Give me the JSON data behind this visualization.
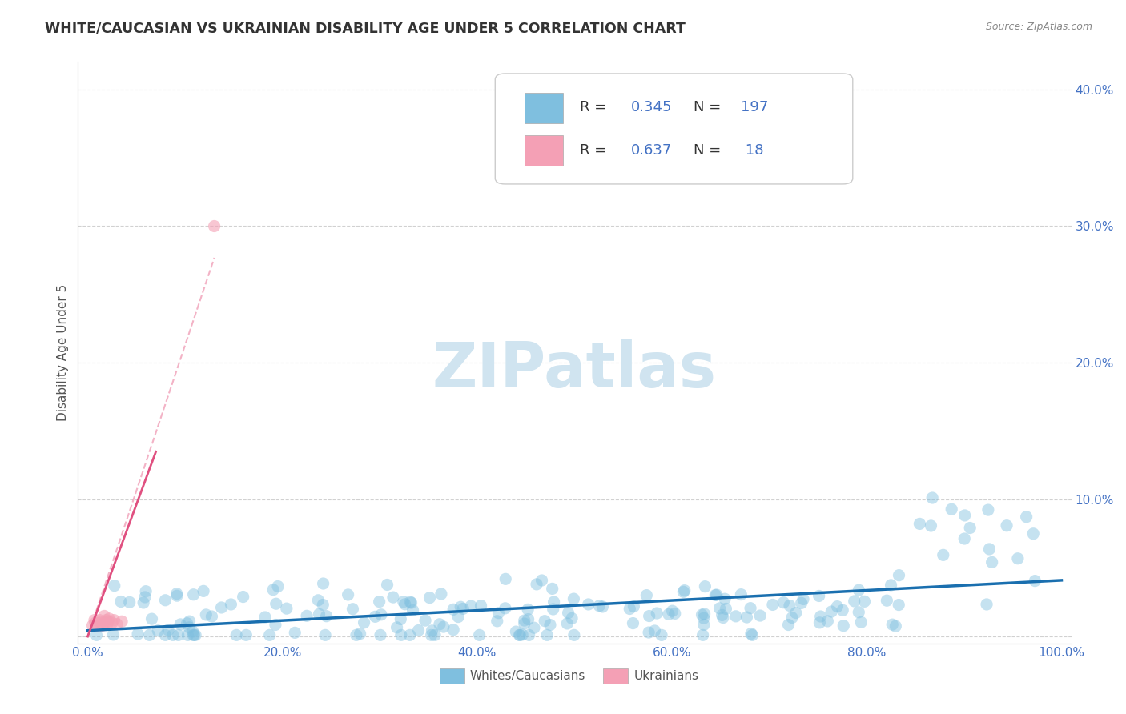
{
  "title": "WHITE/CAUCASIAN VS UKRAINIAN DISABILITY AGE UNDER 5 CORRELATION CHART",
  "source": "Source: ZipAtlas.com",
  "xlabel_white": "Whites/Caucasians",
  "xlabel_ukrainian": "Ukrainians",
  "ylabel": "Disability Age Under 5",
  "watermark": "ZIPatlas",
  "xlim": [
    -0.01,
    1.01
  ],
  "ylim": [
    -0.005,
    0.42
  ],
  "xticks": [
    0.0,
    0.2,
    0.4,
    0.6,
    0.8,
    1.0
  ],
  "xtick_labels": [
    "0.0%",
    "20.0%",
    "40.0%",
    "60.0%",
    "80.0%",
    "100.0%"
  ],
  "yticks": [
    0.0,
    0.1,
    0.2,
    0.3,
    0.4
  ],
  "ytick_labels_right": [
    "",
    "10.0%",
    "20.0%",
    "30.0%",
    "40.0%"
  ],
  "legend_R1": "0.345",
  "legend_N1": "197",
  "legend_R2": "0.637",
  "legend_N2": "18",
  "blue_scatter_color": "#7fbfdf",
  "pink_scatter_color": "#f4a0b5",
  "trend_blue_color": "#1a6faf",
  "trend_pink_color": "#e05080",
  "trend_pink_dash_color": "#f0a0b8",
  "title_color": "#333333",
  "axis_label_color": "#555555",
  "tick_color_blue": "#4472c4",
  "source_color": "#888888",
  "legend_R_color": "#4472c4",
  "watermark_color": "#d0e4f0",
  "grid_color": "#cccccc",
  "scatter_size": 120,
  "scatter_alpha": 0.45
}
